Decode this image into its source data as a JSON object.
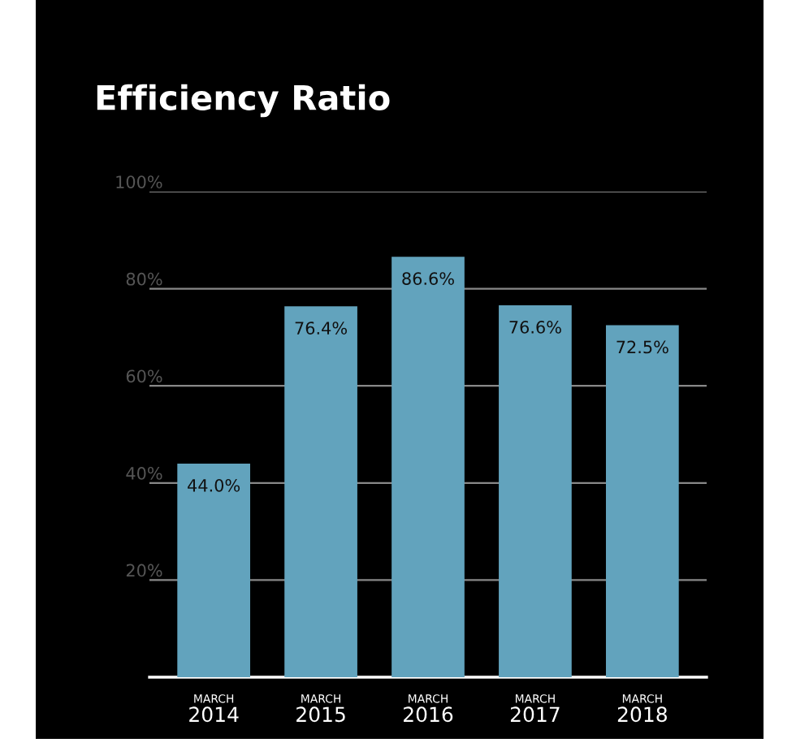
{
  "chart_data": {
    "type": "bar",
    "title": "Efficiency Ratio",
    "categories": [
      "MARCH\n2014",
      "MARCH\n2015",
      "MARCH\n2016",
      "MARCH\n2017",
      "MARCH\n2018"
    ],
    "values": [
      44.0,
      76.4,
      86.6,
      76.6,
      72.5
    ],
    "value_labels": [
      "44.0%",
      "76.4%",
      "86.6%",
      "76.6%",
      "72.5%"
    ],
    "color": "#62a3bd",
    "ylim": [
      0,
      100
    ],
    "yticks": [
      {
        "value": 0,
        "label": null
      },
      {
        "value": 20,
        "label": "20%"
      },
      {
        "value": 40,
        "label": "40%"
      },
      {
        "value": 60,
        "label": "60%"
      },
      {
        "value": 80,
        "label": "80%"
      },
      {
        "value": 100,
        "label": "100%"
      }
    ],
    "grid": "y"
  }
}
